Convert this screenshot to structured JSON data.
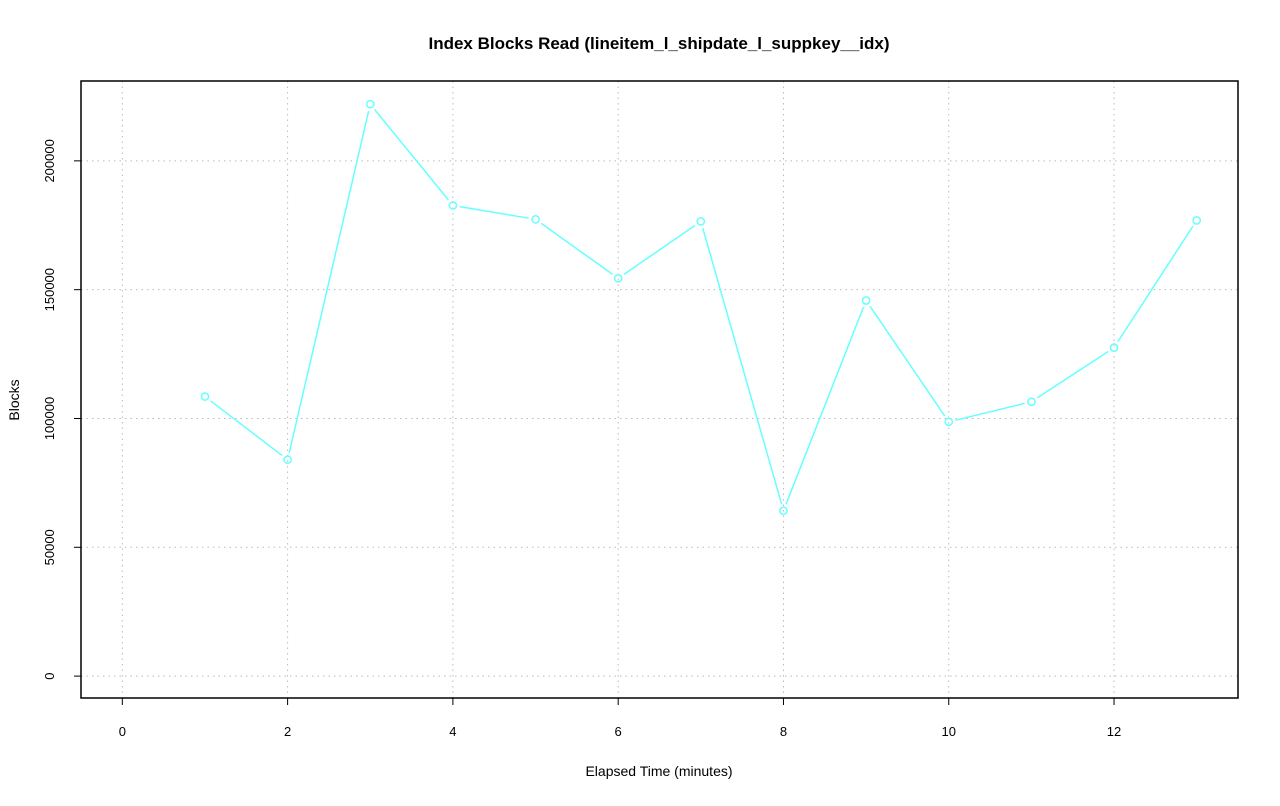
{
  "chart_data": {
    "type": "line",
    "title": "Index Blocks Read (lineitem_l_shipdate_l_suppkey__idx)",
    "xlabel": "Elapsed Time (minutes)",
    "ylabel": "Blocks",
    "xlim": [
      -0.5,
      13.5
    ],
    "ylim": [
      -8500,
      231000
    ],
    "x_ticks": [
      "0",
      "2",
      "4",
      "6",
      "8",
      "10",
      "12"
    ],
    "y_ticks": [
      "0",
      "50000",
      "100000",
      "150000",
      "200000"
    ],
    "grid": true,
    "color": "#66ffff",
    "x": [
      1,
      2,
      3,
      4,
      5,
      6,
      7,
      8,
      9,
      10,
      11,
      12,
      13
    ],
    "values": [
      108500,
      84000,
      222000,
      182700,
      177300,
      154400,
      176500,
      64200,
      145800,
      98700,
      106500,
      127500,
      176900
    ]
  }
}
